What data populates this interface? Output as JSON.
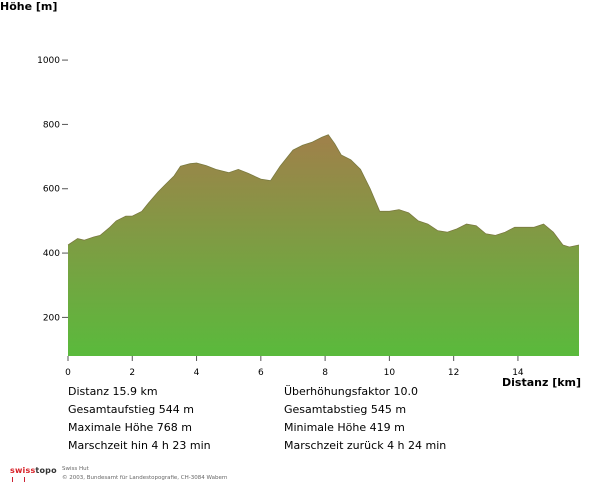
{
  "chart_data": {
    "type": "area",
    "ylabel": "Höhe [m]",
    "xlabel": "Distanz [km]",
    "xlim": [
      0,
      15.9
    ],
    "ylim": [
      80,
      1050
    ],
    "y_ticks": [
      200,
      400,
      600,
      800,
      1000
    ],
    "y_tick_labels": [
      "200",
      "400",
      "600",
      "800",
      "1000"
    ],
    "x_ticks": [
      0,
      2,
      4,
      6,
      8,
      10,
      12,
      14
    ],
    "x_tick_labels": [
      "0",
      "2",
      "4",
      "6",
      "8",
      "10",
      "12",
      "14"
    ],
    "grid": false,
    "fill_gradient": {
      "top": "#a0804a",
      "bottom": "#5aba3c"
    },
    "x": [
      0,
      0.3,
      0.5,
      0.8,
      1.0,
      1.3,
      1.5,
      1.8,
      2.0,
      2.3,
      2.5,
      2.8,
      3.0,
      3.3,
      3.5,
      3.8,
      4.0,
      4.3,
      4.6,
      5.0,
      5.3,
      5.6,
      6.0,
      6.3,
      6.6,
      7.0,
      7.3,
      7.6,
      7.9,
      8.1,
      8.3,
      8.5,
      8.8,
      9.1,
      9.4,
      9.7,
      10.0,
      10.3,
      10.6,
      10.9,
      11.2,
      11.5,
      11.8,
      12.1,
      12.4,
      12.7,
      13.0,
      13.3,
      13.6,
      13.9,
      14.2,
      14.5,
      14.8,
      15.1,
      15.4,
      15.6,
      15.9
    ],
    "values": [
      425,
      445,
      440,
      450,
      455,
      480,
      500,
      515,
      515,
      530,
      555,
      590,
      610,
      640,
      670,
      678,
      680,
      672,
      660,
      650,
      660,
      648,
      630,
      625,
      670,
      720,
      735,
      745,
      760,
      768,
      740,
      705,
      690,
      660,
      600,
      530,
      530,
      535,
      525,
      500,
      490,
      470,
      465,
      475,
      490,
      485,
      460,
      455,
      465,
      480,
      480,
      480,
      490,
      465,
      425,
      419,
      425
    ]
  },
  "stats": {
    "distanz": "Distanz 15.9 km",
    "ueberhoehung": "Überhöhungsfaktor 10.0",
    "gesamtaufstieg": "Gesamtaufstieg  544 m",
    "gesamtabstieg": "Gesamtabstieg  545 m",
    "max_hoehe": "Maximale Höhe  768 m",
    "min_hoehe": "Minimale Höhe  419 m",
    "marschzeit_hin": "Marschzeit hin  4 h 23 min",
    "marschzeit_zurueck": "Marschzeit zurück  4 h 24 min"
  },
  "footer": {
    "logo_swiss": "swiss",
    "logo_topo": "topo",
    "line1": "Swiss Hut",
    "line2": "© 2003, Bundesamt für Landestopografie, CH-3084 Wabern"
  }
}
